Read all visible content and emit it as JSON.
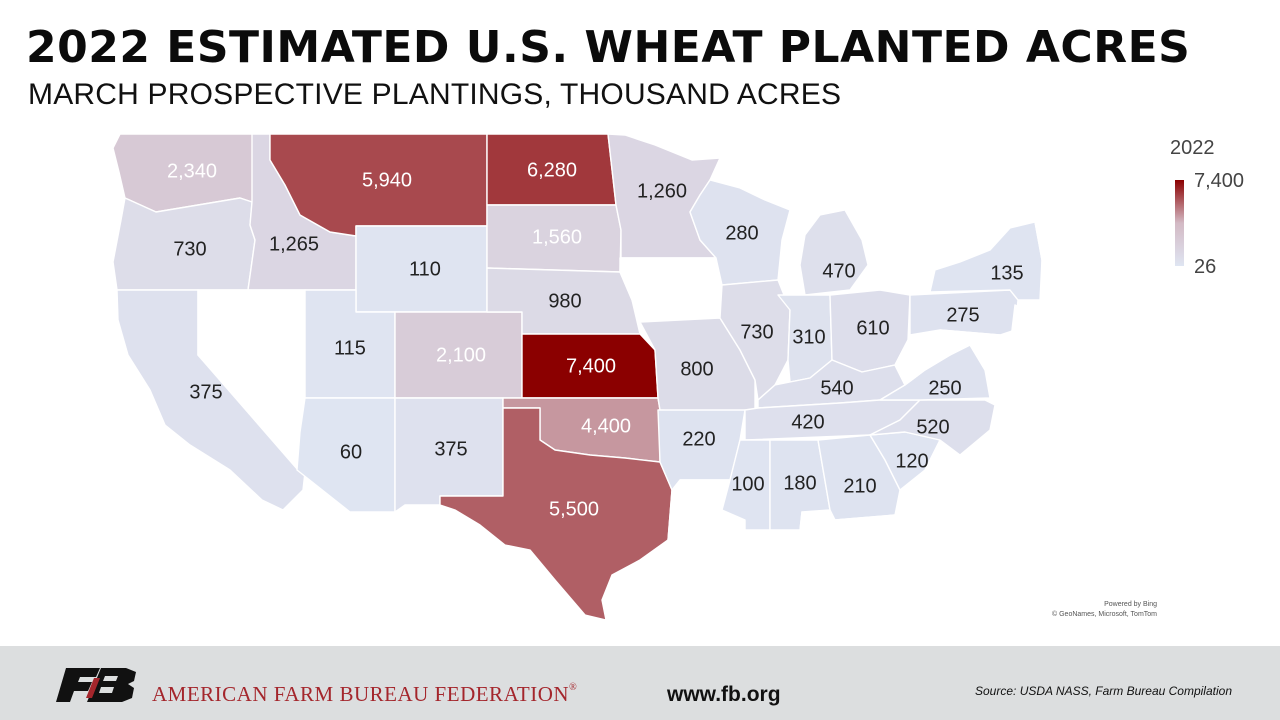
{
  "title": "2022 ESTIMATED U.S. WHEAT PLANTED ACRES",
  "subtitle": "MARCH PROSPECTIVE PLANTINGS, THOUSAND ACRES",
  "legend": {
    "title": "2022",
    "max_label": "7,400",
    "min_label": "26",
    "min_value": 26,
    "max_value": 7400,
    "color_low": "#dfe5f2",
    "color_mid": "#d3b9c4",
    "color_high": "#8b0000"
  },
  "attribution": {
    "line1": "Powered by Bing",
    "line2": "© GeoNames, Microsoft, TomTom"
  },
  "footer": {
    "org_name": "AMERICAN FARM BUREAU FEDERATION",
    "registered_mark": "®",
    "website": "www.fb.org",
    "source": "Source:  USDA NASS, Farm Bureau Compilation"
  },
  "colors": {
    "footer_bg": "#dcdedf",
    "brand_red": "#a4262c",
    "no_data": "#ffffff"
  },
  "states": [
    {
      "code": "WA",
      "value": 2340,
      "label": "2,340"
    },
    {
      "code": "OR",
      "value": 730,
      "label": "730"
    },
    {
      "code": "CA",
      "value": 375,
      "label": "375"
    },
    {
      "code": "ID",
      "value": 1265,
      "label": "1,265"
    },
    {
      "code": "NV",
      "value": null,
      "label": ""
    },
    {
      "code": "MT",
      "value": 5940,
      "label": "5,940"
    },
    {
      "code": "WY",
      "value": 110,
      "label": "110"
    },
    {
      "code": "UT",
      "value": 115,
      "label": "115"
    },
    {
      "code": "AZ",
      "value": 60,
      "label": "60"
    },
    {
      "code": "CO",
      "value": 2100,
      "label": "2,100"
    },
    {
      "code": "NM",
      "value": 375,
      "label": "375"
    },
    {
      "code": "ND",
      "value": 6280,
      "label": "6,280"
    },
    {
      "code": "SD",
      "value": 1560,
      "label": "1,560"
    },
    {
      "code": "NE",
      "value": 980,
      "label": "980"
    },
    {
      "code": "KS",
      "value": 7400,
      "label": "7,400"
    },
    {
      "code": "OK",
      "value": 4400,
      "label": "4,400"
    },
    {
      "code": "TX",
      "value": 5500,
      "label": "5,500"
    },
    {
      "code": "MN",
      "value": 1260,
      "label": "1,260"
    },
    {
      "code": "IA",
      "value": null,
      "label": ""
    },
    {
      "code": "MO",
      "value": 800,
      "label": "800"
    },
    {
      "code": "AR",
      "value": 220,
      "label": "220"
    },
    {
      "code": "LA",
      "value": null,
      "label": ""
    },
    {
      "code": "WI",
      "value": 280,
      "label": "280"
    },
    {
      "code": "IL",
      "value": 730,
      "label": "730"
    },
    {
      "code": "MI",
      "value": 470,
      "label": "470"
    },
    {
      "code": "IN",
      "value": 310,
      "label": "310"
    },
    {
      "code": "OH",
      "value": 610,
      "label": "610"
    },
    {
      "code": "KY",
      "value": 540,
      "label": "540"
    },
    {
      "code": "TN",
      "value": 420,
      "label": "420"
    },
    {
      "code": "MS",
      "value": 100,
      "label": "100"
    },
    {
      "code": "AL",
      "value": 180,
      "label": "180"
    },
    {
      "code": "GA",
      "value": 210,
      "label": "210"
    },
    {
      "code": "SC",
      "value": 120,
      "label": "120"
    },
    {
      "code": "NC",
      "value": 520,
      "label": "520"
    },
    {
      "code": "VA",
      "value": 250,
      "label": "250"
    },
    {
      "code": "WV",
      "value": null,
      "label": ""
    },
    {
      "code": "PA",
      "value": 275,
      "label": "275"
    },
    {
      "code": "NY",
      "value": 135,
      "label": "135"
    },
    {
      "code": "FL",
      "value": null,
      "label": ""
    },
    {
      "code": "MD",
      "value": null,
      "label": ""
    },
    {
      "code": "DE",
      "value": null,
      "label": ""
    },
    {
      "code": "NJ",
      "value": null,
      "label": ""
    },
    {
      "code": "NE_REGION",
      "value": null,
      "label": ""
    }
  ]
}
